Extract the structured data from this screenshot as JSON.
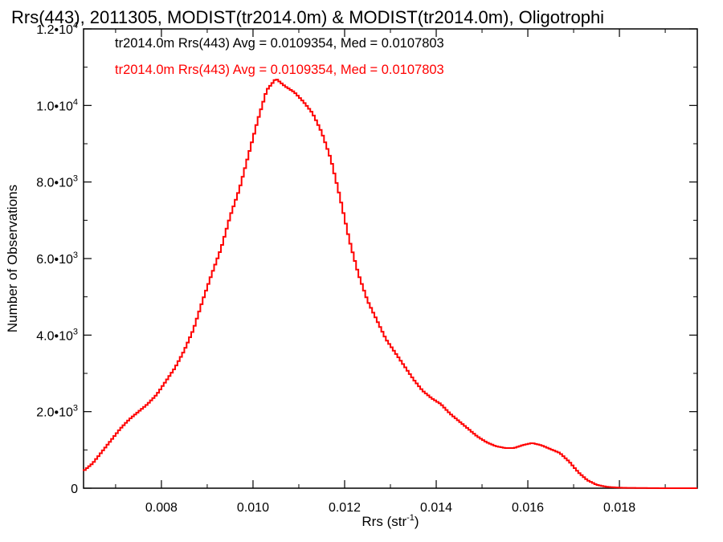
{
  "chart_data": {
    "type": "line",
    "title": "Rrs(443), 2011305, MODIST(tr2014.0m) & MODIST(tr2014.0m), Oligotrophi",
    "xlabel_main": "Rrs (str",
    "xlabel_sup": "-1",
    "xlabel_close": ")",
    "ylabel": "Number of Observations",
    "xlim": [
      0.0063,
      0.0197
    ],
    "ylim": [
      0,
      12000
    ],
    "x_ticks": [
      {
        "value": 0.008,
        "label": "0.008"
      },
      {
        "value": 0.01,
        "label": "0.010"
      },
      {
        "value": 0.012,
        "label": "0.012"
      },
      {
        "value": 0.014,
        "label": "0.014"
      },
      {
        "value": 0.016,
        "label": "0.016"
      },
      {
        "value": 0.018,
        "label": "0.018"
      }
    ],
    "y_ticks": [
      {
        "value": 0,
        "mant": "0",
        "exp": ""
      },
      {
        "value": 2000,
        "mant": "2.0•10",
        "exp": "3"
      },
      {
        "value": 4000,
        "mant": "4.0•10",
        "exp": "3"
      },
      {
        "value": 6000,
        "mant": "6.0•10",
        "exp": "3"
      },
      {
        "value": 8000,
        "mant": "8.0•10",
        "exp": "3"
      },
      {
        "value": 10000,
        "mant": "1.0•10",
        "exp": "4"
      },
      {
        "value": 12000,
        "mant": "1.2•10",
        "exp": "4"
      }
    ],
    "annotations": [
      {
        "text": "tr2014.0m Rrs(443) Avg = 0.0109354, Med = 0.0107803",
        "color": "#000000"
      },
      {
        "text": "tr2014.0m Rrs(443) Avg = 0.0109354, Med = 0.0107803",
        "color": "#ff0000"
      }
    ],
    "series": [
      {
        "color": "#ff0000",
        "step": "histogram",
        "points": [
          [
            0.0063,
            450
          ],
          [
            0.0065,
            650
          ],
          [
            0.0067,
            950
          ],
          [
            0.0069,
            1250
          ],
          [
            0.0071,
            1550
          ],
          [
            0.0073,
            1800
          ],
          [
            0.0075,
            2000
          ],
          [
            0.0077,
            2200
          ],
          [
            0.0079,
            2450
          ],
          [
            0.0081,
            2800
          ],
          [
            0.0083,
            3150
          ],
          [
            0.0085,
            3600
          ],
          [
            0.0087,
            4150
          ],
          [
            0.0089,
            4900
          ],
          [
            0.0091,
            5600
          ],
          [
            0.0093,
            6250
          ],
          [
            0.0095,
            7100
          ],
          [
            0.0097,
            7800
          ],
          [
            0.0099,
            8700
          ],
          [
            0.0101,
            9600
          ],
          [
            0.0103,
            10400
          ],
          [
            0.0105,
            10700
          ],
          [
            0.0107,
            10500
          ],
          [
            0.0109,
            10350
          ],
          [
            0.0111,
            10100
          ],
          [
            0.0113,
            9800
          ],
          [
            0.0115,
            9300
          ],
          [
            0.0117,
            8600
          ],
          [
            0.0119,
            7600
          ],
          [
            0.0121,
            6500
          ],
          [
            0.0123,
            5600
          ],
          [
            0.0125,
            4900
          ],
          [
            0.0127,
            4400
          ],
          [
            0.0129,
            3900
          ],
          [
            0.0131,
            3550
          ],
          [
            0.0133,
            3200
          ],
          [
            0.0135,
            2850
          ],
          [
            0.0137,
            2550
          ],
          [
            0.0139,
            2350
          ],
          [
            0.0141,
            2200
          ],
          [
            0.0143,
            1950
          ],
          [
            0.0145,
            1750
          ],
          [
            0.0147,
            1550
          ],
          [
            0.0149,
            1350
          ],
          [
            0.0151,
            1200
          ],
          [
            0.0153,
            1100
          ],
          [
            0.0155,
            1050
          ],
          [
            0.0157,
            1050
          ],
          [
            0.0159,
            1130
          ],
          [
            0.0161,
            1180
          ],
          [
            0.0163,
            1120
          ],
          [
            0.0165,
            1020
          ],
          [
            0.0167,
            920
          ],
          [
            0.0169,
            700
          ],
          [
            0.0171,
            420
          ],
          [
            0.0173,
            210
          ],
          [
            0.0175,
            90
          ],
          [
            0.0177,
            40
          ],
          [
            0.0179,
            20
          ],
          [
            0.0181,
            10
          ],
          [
            0.0185,
            5
          ],
          [
            0.019,
            0
          ],
          [
            0.0197,
            0
          ]
        ]
      }
    ]
  }
}
